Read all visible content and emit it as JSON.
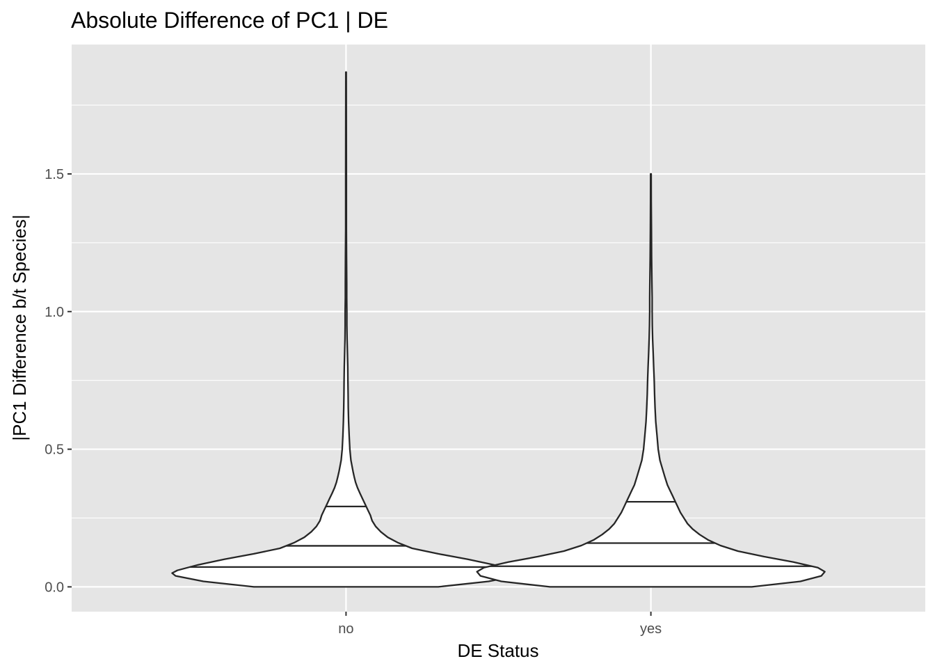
{
  "chart_data": {
    "type": "violin",
    "title": "Absolute Difference of PC1 | DE",
    "xlabel": "DE Status",
    "ylabel": "|PC1 Difference b/t Species|",
    "categories": [
      "no",
      "yes"
    ],
    "ylim": [
      -0.09,
      1.97
    ],
    "yticks": [
      0.0,
      0.5,
      1.0,
      1.5
    ],
    "ytick_labels": [
      "0.0",
      "0.5",
      "1.0",
      "1.5"
    ],
    "grid": true,
    "legend": "none",
    "violins": [
      {
        "category": "no",
        "quantiles": [
          0.072,
          0.149,
          0.292
        ],
        "max": 1.87,
        "density_profile": [
          [
            0.0,
            0.53
          ],
          [
            0.02,
            0.82
          ],
          [
            0.04,
            0.98
          ],
          [
            0.05,
            1.0
          ],
          [
            0.06,
            0.97
          ],
          [
            0.08,
            0.85
          ],
          [
            0.1,
            0.7
          ],
          [
            0.12,
            0.53
          ],
          [
            0.14,
            0.38
          ],
          [
            0.16,
            0.3
          ],
          [
            0.18,
            0.24
          ],
          [
            0.2,
            0.2
          ],
          [
            0.22,
            0.17
          ],
          [
            0.24,
            0.15
          ],
          [
            0.26,
            0.14
          ],
          [
            0.28,
            0.125
          ],
          [
            0.3,
            0.11
          ],
          [
            0.32,
            0.095
          ],
          [
            0.34,
            0.08
          ],
          [
            0.36,
            0.066
          ],
          [
            0.38,
            0.055
          ],
          [
            0.4,
            0.047
          ],
          [
            0.42,
            0.04
          ],
          [
            0.44,
            0.034
          ],
          [
            0.46,
            0.028
          ],
          [
            0.5,
            0.022
          ],
          [
            0.55,
            0.018
          ],
          [
            0.6,
            0.015
          ],
          [
            0.65,
            0.013
          ],
          [
            0.7,
            0.012
          ],
          [
            0.75,
            0.011
          ],
          [
            0.8,
            0.01
          ],
          [
            0.85,
            0.008
          ],
          [
            0.9,
            0.006
          ],
          [
            0.95,
            0.005
          ],
          [
            1.0,
            0.005
          ],
          [
            1.05,
            0.004
          ],
          [
            1.1,
            0.004
          ],
          [
            1.2,
            0.003
          ],
          [
            1.3,
            0.002
          ],
          [
            1.5,
            0.002
          ],
          [
            1.7,
            0.0015
          ],
          [
            1.87,
            0.0012
          ]
        ]
      },
      {
        "category": "yes",
        "quantiles": [
          0.075,
          0.159,
          0.309
        ],
        "max": 1.5,
        "density_profile": [
          [
            0.0,
            0.58
          ],
          [
            0.02,
            0.86
          ],
          [
            0.04,
            0.98
          ],
          [
            0.055,
            1.0
          ],
          [
            0.07,
            0.96
          ],
          [
            0.09,
            0.82
          ],
          [
            0.11,
            0.65
          ],
          [
            0.13,
            0.5
          ],
          [
            0.15,
            0.4
          ],
          [
            0.17,
            0.33
          ],
          [
            0.19,
            0.28
          ],
          [
            0.21,
            0.24
          ],
          [
            0.23,
            0.21
          ],
          [
            0.25,
            0.19
          ],
          [
            0.27,
            0.17
          ],
          [
            0.29,
            0.155
          ],
          [
            0.31,
            0.14
          ],
          [
            0.33,
            0.125
          ],
          [
            0.35,
            0.11
          ],
          [
            0.37,
            0.095
          ],
          [
            0.4,
            0.08
          ],
          [
            0.43,
            0.066
          ],
          [
            0.46,
            0.052
          ],
          [
            0.5,
            0.042
          ],
          [
            0.55,
            0.035
          ],
          [
            0.6,
            0.028
          ],
          [
            0.65,
            0.024
          ],
          [
            0.7,
            0.021
          ],
          [
            0.75,
            0.019
          ],
          [
            0.8,
            0.016
          ],
          [
            0.85,
            0.013
          ],
          [
            0.9,
            0.01
          ],
          [
            0.95,
            0.008
          ],
          [
            1.0,
            0.007
          ],
          [
            1.05,
            0.007
          ],
          [
            1.1,
            0.006
          ],
          [
            1.2,
            0.004
          ],
          [
            1.3,
            0.003
          ],
          [
            1.4,
            0.002
          ],
          [
            1.5,
            0.0015
          ]
        ]
      }
    ]
  }
}
